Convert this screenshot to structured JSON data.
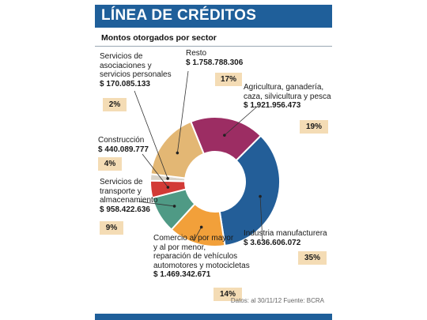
{
  "title": "LÍNEA DE CRÉDITOS",
  "subtitle": "Montos otorgados por sector",
  "footer": "Datos: al 30/11/12   Fuente: BCRA",
  "colors": {
    "header": "#1f5f9a",
    "pct_box": "#f4dcb5"
  },
  "chart_data": {
    "type": "pie",
    "variant": "donut",
    "title": "Montos otorgados por sector",
    "slices": [
      {
        "name_lines": [
          "Agricultura, ganadería,",
          "caza, silvicultura y pesca"
        ],
        "value": 1921956473,
        "value_label": "$ 1.921.956.473",
        "percent": 19,
        "percent_label": "19%",
        "color": "#9c2d63"
      },
      {
        "name_lines": [
          "Industria manufacturera"
        ],
        "value": 3636606072,
        "value_label": "$ 3.636.606.072",
        "percent": 35,
        "percent_label": "35%",
        "color": "#235e98"
      },
      {
        "name_lines": [
          "Comercio al por mayor",
          "y al por menor,",
          "reparación de vehículos",
          "automotores y motocicletas"
        ],
        "value": 1469342671,
        "value_label": "$ 1.469.342.671",
        "percent": 14,
        "percent_label": "14%",
        "color": "#f2a03a"
      },
      {
        "name_lines": [
          "Servicios de",
          "transporte y",
          "almacenamiento"
        ],
        "value": 958422636,
        "value_label": "$ 958.422.636",
        "percent": 9,
        "percent_label": "9%",
        "color": "#4f9a85"
      },
      {
        "name_lines": [
          "Construcción"
        ],
        "value": 440089777,
        "value_label": "$ 440.089.777",
        "percent": 4,
        "percent_label": "4%",
        "color": "#d23a36"
      },
      {
        "name_lines": [
          "Servicios de",
          "asociaciones y",
          "servicios personales"
        ],
        "value": 170085133,
        "value_label": "$ 170.085.133",
        "percent": 2,
        "percent_label": "2%",
        "color": "#d9d3c9"
      },
      {
        "name_lines": [
          "Resto"
        ],
        "value": 1758788306,
        "value_label": "$ 1.758.788.306",
        "percent": 17,
        "percent_label": "17%",
        "color": "#e3b774"
      }
    ]
  }
}
